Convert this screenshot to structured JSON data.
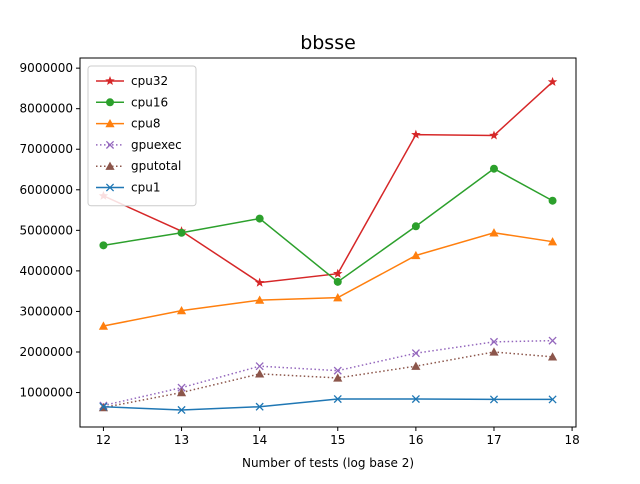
{
  "chart_data": {
    "type": "line",
    "title": "bbsse",
    "xlabel": "Number of tests (log base 2)",
    "ylabel": "",
    "xlim": [
      11.7,
      18.05
    ],
    "ylim": [
      150000,
      9250000
    ],
    "xticks": [
      12,
      13,
      14,
      15,
      16,
      17,
      18
    ],
    "yticks": [
      1000000,
      2000000,
      3000000,
      4000000,
      5000000,
      6000000,
      7000000,
      8000000,
      9000000
    ],
    "grid": false,
    "legend_position": "upper-left",
    "series": [
      {
        "name": "cpu32",
        "color": "#d62728",
        "marker": "star",
        "linestyle": "solid",
        "x": [
          12,
          13,
          14,
          15,
          16,
          17,
          17.75
        ],
        "y": [
          5850000,
          4980000,
          3710000,
          3930000,
          7360000,
          7340000,
          8660000
        ]
      },
      {
        "name": "cpu16",
        "color": "#2ca02c",
        "marker": "circle",
        "linestyle": "solid",
        "x": [
          12,
          13,
          14,
          15,
          16,
          17,
          17.75
        ],
        "y": [
          4630000,
          4940000,
          5290000,
          3730000,
          5100000,
          6520000,
          5730000
        ]
      },
      {
        "name": "cpu8",
        "color": "#ff7f0e",
        "marker": "triangle",
        "linestyle": "solid",
        "x": [
          12,
          13,
          14,
          15,
          16,
          17,
          17.75
        ],
        "y": [
          2640000,
          3020000,
          3280000,
          3340000,
          4380000,
          4940000,
          4720000
        ]
      },
      {
        "name": "gpuexec",
        "color": "#9467bd",
        "marker": "x",
        "linestyle": "dotted",
        "x": [
          12,
          13,
          14,
          15,
          16,
          17,
          17.75
        ],
        "y": [
          680000,
          1120000,
          1650000,
          1540000,
          1970000,
          2250000,
          2280000
        ]
      },
      {
        "name": "gputotal",
        "color": "#8c564b",
        "marker": "triangle",
        "linestyle": "dotted",
        "x": [
          12,
          13,
          14,
          15,
          16,
          17,
          17.75
        ],
        "y": [
          630000,
          1000000,
          1460000,
          1360000,
          1650000,
          2000000,
          1880000
        ]
      },
      {
        "name": "cpu1",
        "color": "#1f77b4",
        "marker": "x",
        "linestyle": "solid",
        "x": [
          12,
          13,
          14,
          15,
          16,
          17,
          17.75
        ],
        "y": [
          650000,
          570000,
          650000,
          840000,
          840000,
          830000,
          830000
        ]
      }
    ]
  }
}
